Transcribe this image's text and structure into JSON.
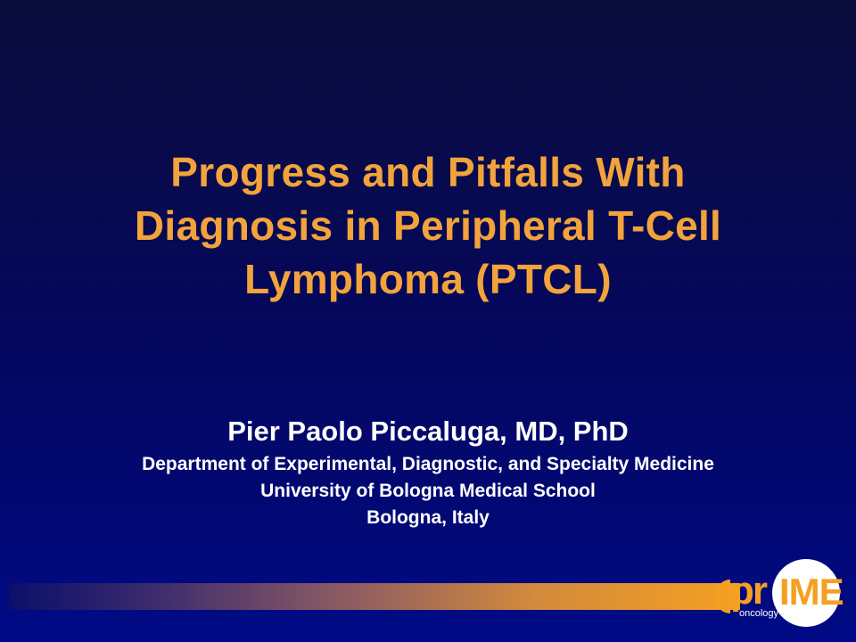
{
  "slide": {
    "title_lines": [
      "Progress and Pitfalls With",
      "Diagnosis in Peripheral T-Cell",
      "Lymphoma (PTCL)"
    ],
    "presenter_name": "Pier Paolo Piccaluga, MD, PhD",
    "affiliation_lines": [
      "Department of Experimental, Diagnostic, and Specialty Medicine",
      "University of Bologna Medical School",
      "Bologna, Italy"
    ]
  },
  "logo": {
    "text_pr": "pr",
    "text_me": "IME",
    "subtext": "oncology"
  },
  "colors": {
    "title": "#f2a33b",
    "text": "#ffffff",
    "accent": "#f5a021",
    "background": "#04075f"
  }
}
